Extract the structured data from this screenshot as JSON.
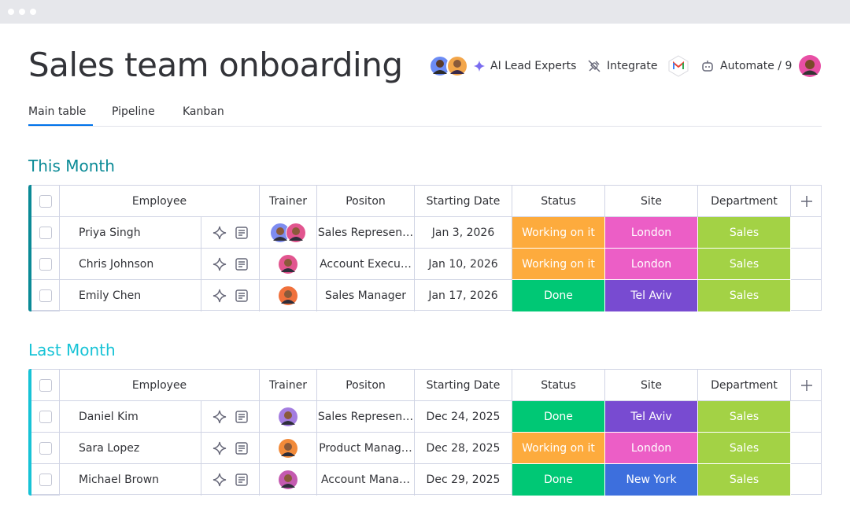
{
  "header": {
    "title": "Sales team onboarding",
    "actions": [
      "AI Lead Experts",
      "Integrate",
      "Automate / 9"
    ]
  },
  "tabs": [
    "Main table",
    "Pipeline",
    "Kanban"
  ],
  "groups": [
    {
      "title": "This Month",
      "color": "#0a8a96",
      "columns": [
        "Employee",
        "Trainer",
        "Positon",
        "Starting Date",
        "Status",
        "Site",
        "Department"
      ],
      "rows": [
        {
          "employee": "Priya Singh",
          "position": "Sales Represen…",
          "starting_date": "Jan 3, 2026",
          "status": {
            "label": "Working on it",
            "color": "#fdab3d"
          },
          "site": {
            "label": "London",
            "color": "#ec5ec6"
          },
          "department": {
            "label": "Sales",
            "color": "#a3d245"
          }
        },
        {
          "employee": "Chris Johnson",
          "position": "Account Execu…",
          "starting_date": "Jan 10, 2026",
          "status": {
            "label": "Working on it",
            "color": "#fdab3d"
          },
          "site": {
            "label": "London",
            "color": "#ec5ec6"
          },
          "department": {
            "label": "Sales",
            "color": "#a3d245"
          }
        },
        {
          "employee": "Emily Chen",
          "position": "Sales Manager",
          "starting_date": "Jan 17, 2026",
          "status": {
            "label": "Done",
            "color": "#00c875"
          },
          "site": {
            "label": "Tel Aviv",
            "color": "#784bd1"
          },
          "department": {
            "label": "Sales",
            "color": "#a3d245"
          }
        }
      ]
    },
    {
      "title": "Last Month",
      "color": "#17c3d6",
      "columns": [
        "Employee",
        "Trainer",
        "Positon",
        "Starting Date",
        "Status",
        "Site",
        "Department"
      ],
      "rows": [
        {
          "employee": "Daniel Kim",
          "position": "Sales Represen…",
          "starting_date": "Dec 24, 2025",
          "status": {
            "label": "Done",
            "color": "#00c875"
          },
          "site": {
            "label": "Tel Aviv",
            "color": "#784bd1"
          },
          "department": {
            "label": "Sales",
            "color": "#a3d245"
          }
        },
        {
          "employee": "Sara Lopez",
          "position": "Product Manag…",
          "starting_date": "Dec 28, 2025",
          "status": {
            "label": "Working on it",
            "color": "#fdab3d"
          },
          "site": {
            "label": "London",
            "color": "#ec5ec6"
          },
          "department": {
            "label": "Sales",
            "color": "#a3d245"
          }
        },
        {
          "employee": "Michael Brown",
          "position": "Account Mana…",
          "starting_date": "Dec 29, 2025",
          "status": {
            "label": "Done",
            "color": "#00c875"
          },
          "site": {
            "label": "New York",
            "color": "#3d6fdd"
          },
          "department": {
            "label": "Sales",
            "color": "#a3d245"
          }
        }
      ]
    }
  ]
}
